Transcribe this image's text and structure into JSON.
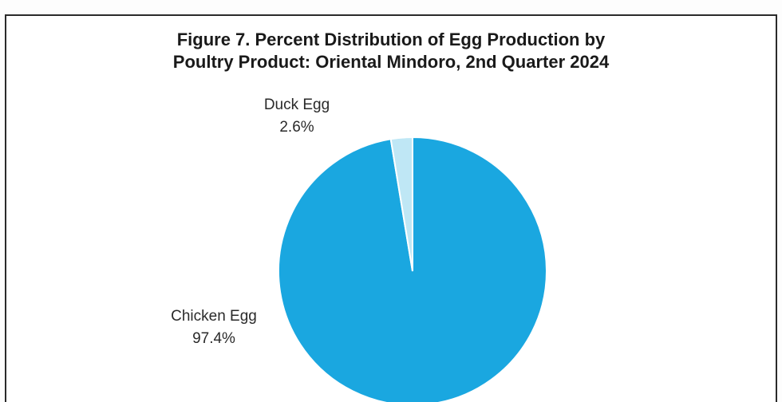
{
  "chart_data": {
    "type": "pie",
    "title_line1": "Figure 7. Percent Distribution of Egg Production by",
    "title_line2": "Poultry Product: Oriental Mindoro, 2nd Quarter 2024",
    "slices": [
      {
        "name": "Chicken Egg",
        "value": 97.4,
        "label": "97.4%",
        "color": "#1aa7e0"
      },
      {
        "name": "Duck Egg",
        "value": 2.6,
        "label": "2.6%",
        "color": "#bfe7f5"
      }
    ]
  }
}
